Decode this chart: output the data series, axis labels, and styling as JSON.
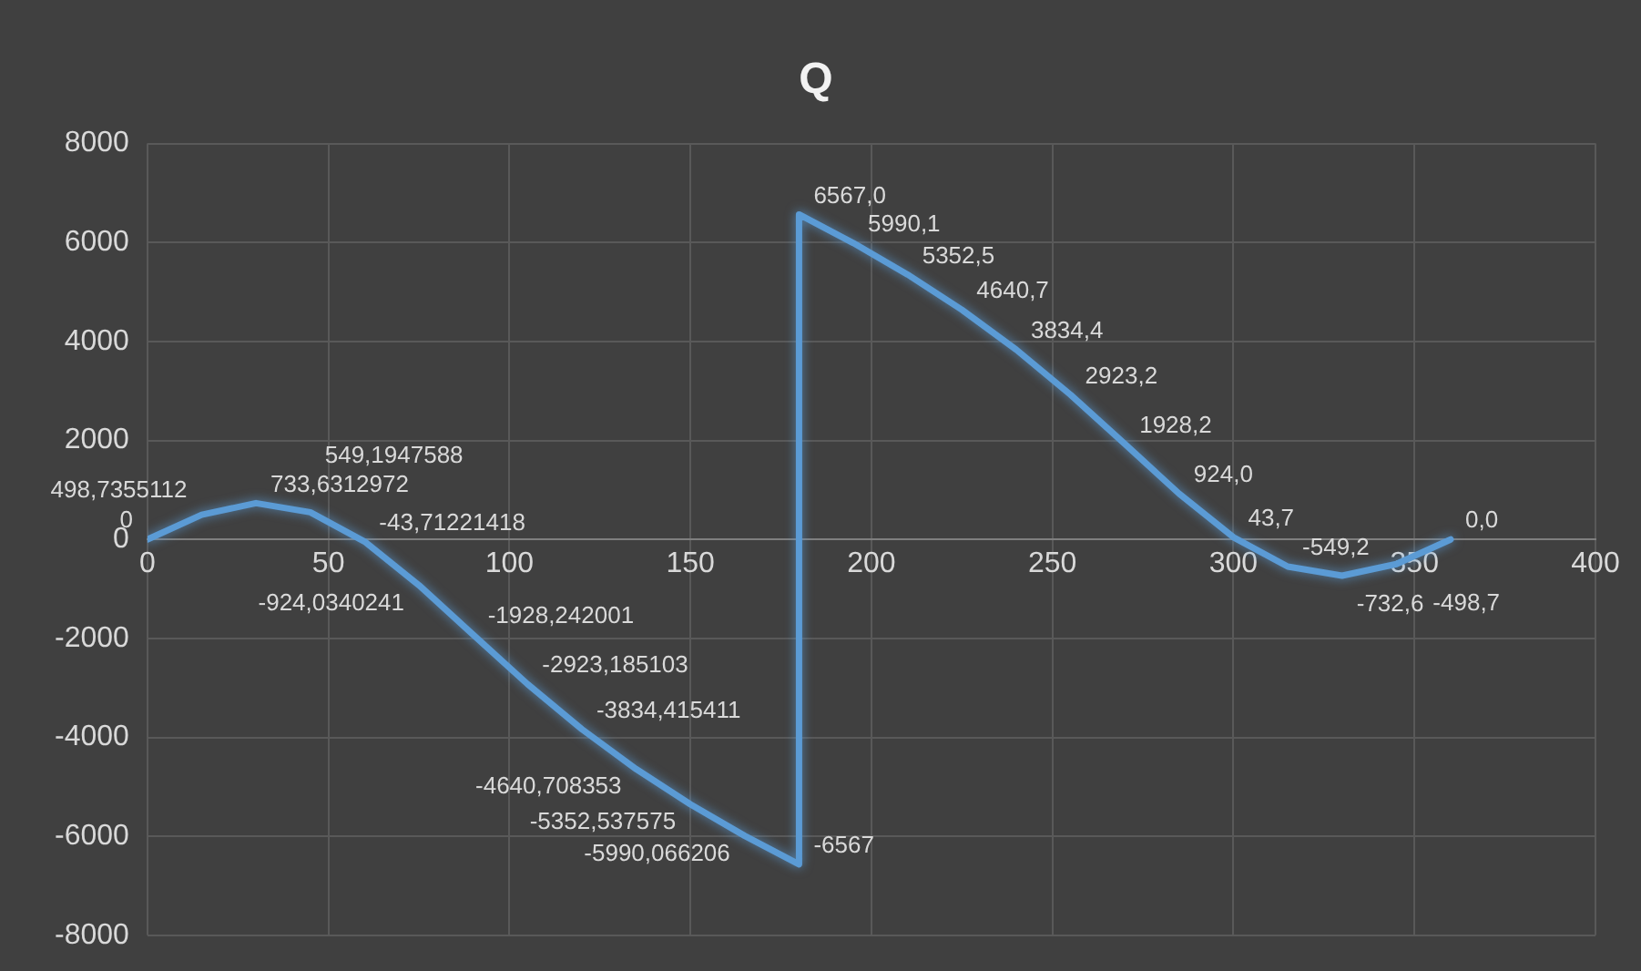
{
  "chart_data": {
    "type": "line",
    "title": "Q",
    "x": [
      0,
      15,
      30,
      45,
      60,
      75,
      90,
      105,
      120,
      135,
      150,
      165,
      180,
      180,
      195,
      210,
      225,
      240,
      255,
      270,
      285,
      300,
      315,
      330,
      345,
      360
    ],
    "series": [
      {
        "color": "#5b9bd5",
        "values": [
          0,
          498.7355112,
          733.6312972,
          549.1947588,
          -43.71221418,
          -924.0340241,
          -1928.242001,
          -2923.185103,
          -3834.415411,
          -4640.708353,
          -5352.537575,
          -5990.066206,
          -6567,
          6567,
          5990.1,
          5352.5,
          4640.7,
          3834.4,
          2923.2,
          1928.2,
          924,
          43.7,
          -549.2,
          -732.6,
          -498.7,
          0
        ],
        "value_labels": [
          "0",
          "498,7355112",
          "733,6312972",
          "549,1947588",
          "-43,71221418",
          "-924,0340241",
          "-1928,242001",
          "-2923,185103",
          "-3834,415411",
          "-4640,708353",
          "-5352,537575",
          "-5990,066206",
          "-6567",
          "6567,0",
          "5990,1",
          "5352,5",
          "4640,7",
          "3834,4",
          "2923,2",
          "1928,2",
          "924,0",
          "43,7",
          "-549,2",
          "-732,6",
          "-498,7",
          "0,0"
        ]
      }
    ],
    "xlim": [
      0,
      400
    ],
    "xticks": [
      0,
      50,
      100,
      150,
      200,
      250,
      300,
      350,
      400
    ],
    "ylim": [
      -8000,
      8000
    ],
    "yticks": [
      -8000,
      -6000,
      -4000,
      -2000,
      0,
      2000,
      4000,
      6000,
      8000
    ],
    "grid": true,
    "legend": false,
    "marker": "none",
    "line_style": "solid"
  }
}
